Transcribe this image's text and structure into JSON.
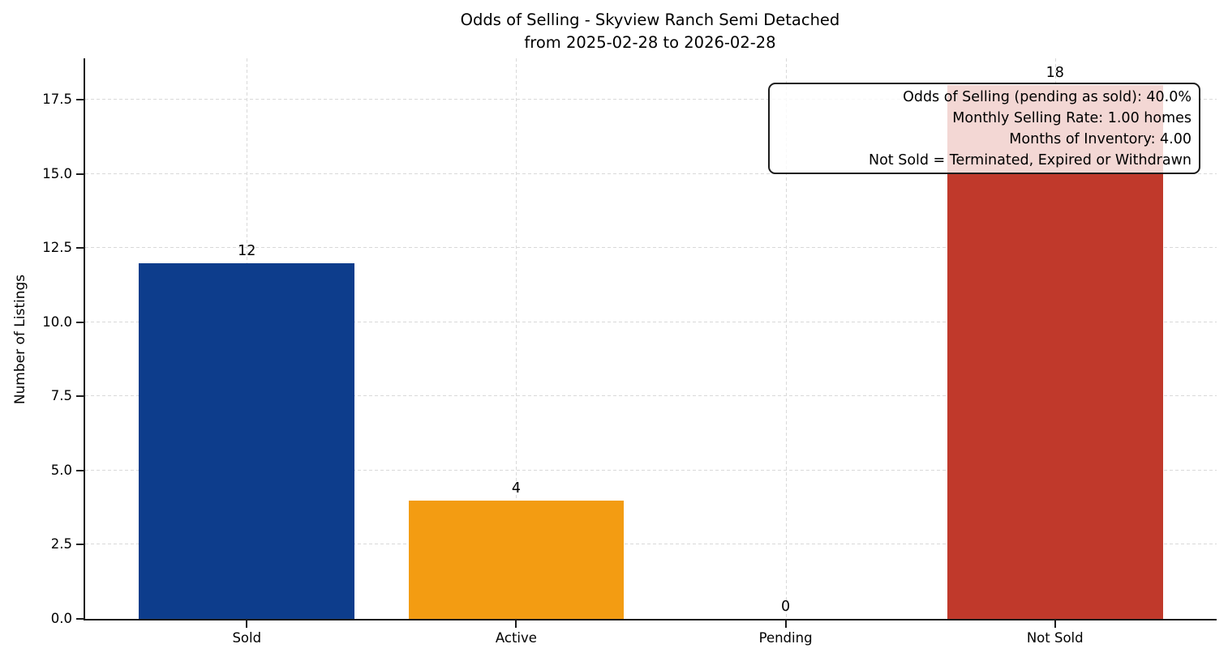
{
  "chart_data": {
    "type": "bar",
    "title": "Odds of Selling - Skyview Ranch Semi Detached",
    "subtitle": "from 2025-02-28 to 2026-02-28",
    "categories": [
      "Sold",
      "Active",
      "Pending",
      "Not Sold"
    ],
    "values": [
      12,
      4,
      0,
      18
    ],
    "bar_value_labels": [
      "12",
      "4",
      "0",
      "18"
    ],
    "colors": {
      "Sold": "#0d3d8c",
      "Active": "#f39c12",
      "Not Sold": "#c0392b"
    },
    "xlabel": "",
    "ylabel": "Number of Listings",
    "ylim": [
      0,
      18.9
    ],
    "yticks": [
      0.0,
      2.5,
      5.0,
      7.5,
      10.0,
      12.5,
      15.0,
      17.5
    ],
    "ytick_labels": [
      "0.0",
      "2.5",
      "5.0",
      "7.5",
      "10.0",
      "12.5",
      "15.0",
      "17.5"
    ],
    "bar_width_fraction": 0.8,
    "x_units_span": 4.2,
    "grid": {
      "style": "dashed",
      "axes": "both",
      "color": "#d9d9d9"
    },
    "legend": null,
    "annotation_box": {
      "text_align": "right",
      "lines": [
        "Odds of Selling (pending as sold): 40.0%",
        "Monthly Selling Rate: 1.00 homes",
        "Months of Inventory: 4.00",
        "Not Sold = Terminated, Expired or Withdrawn"
      ]
    }
  },
  "style_colors": {
    "spine": "#1c1c1c",
    "grid": "#d9d9d9",
    "text": "#000000",
    "annotation_background": "rgba(255,255,255,0.8)"
  }
}
